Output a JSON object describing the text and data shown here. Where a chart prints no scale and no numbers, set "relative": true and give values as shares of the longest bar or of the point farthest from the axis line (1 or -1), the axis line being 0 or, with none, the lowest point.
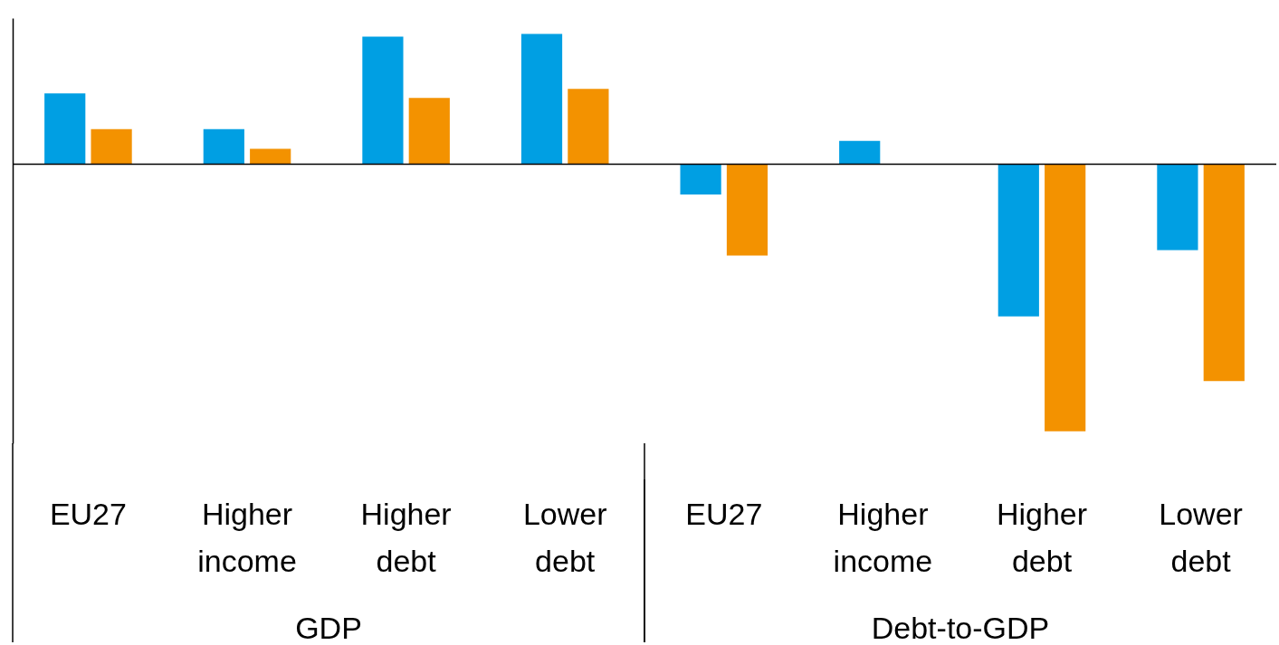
{
  "chart_data": {
    "type": "bar",
    "relative": true,
    "categories": [
      "EU27",
      "Higher income",
      "Higher debt",
      "Lower debt",
      "EU27",
      "Higher income",
      "Higher debt",
      "Lower debt"
    ],
    "series": [
      {
        "color": "#009fe3",
        "values": [
          0.265,
          0.131,
          0.477,
          0.487,
          -0.114,
          0.087,
          -0.57,
          -0.322
        ]
      },
      {
        "color": "#f39200",
        "values": [
          0.131,
          0.057,
          0.248,
          0.282,
          -0.342,
          null,
          -1,
          -0.812
        ]
      }
    ],
    "annotations": [
      "GDP",
      "Debt-to-GDP"
    ],
    "legend": false,
    "grid": false
  }
}
